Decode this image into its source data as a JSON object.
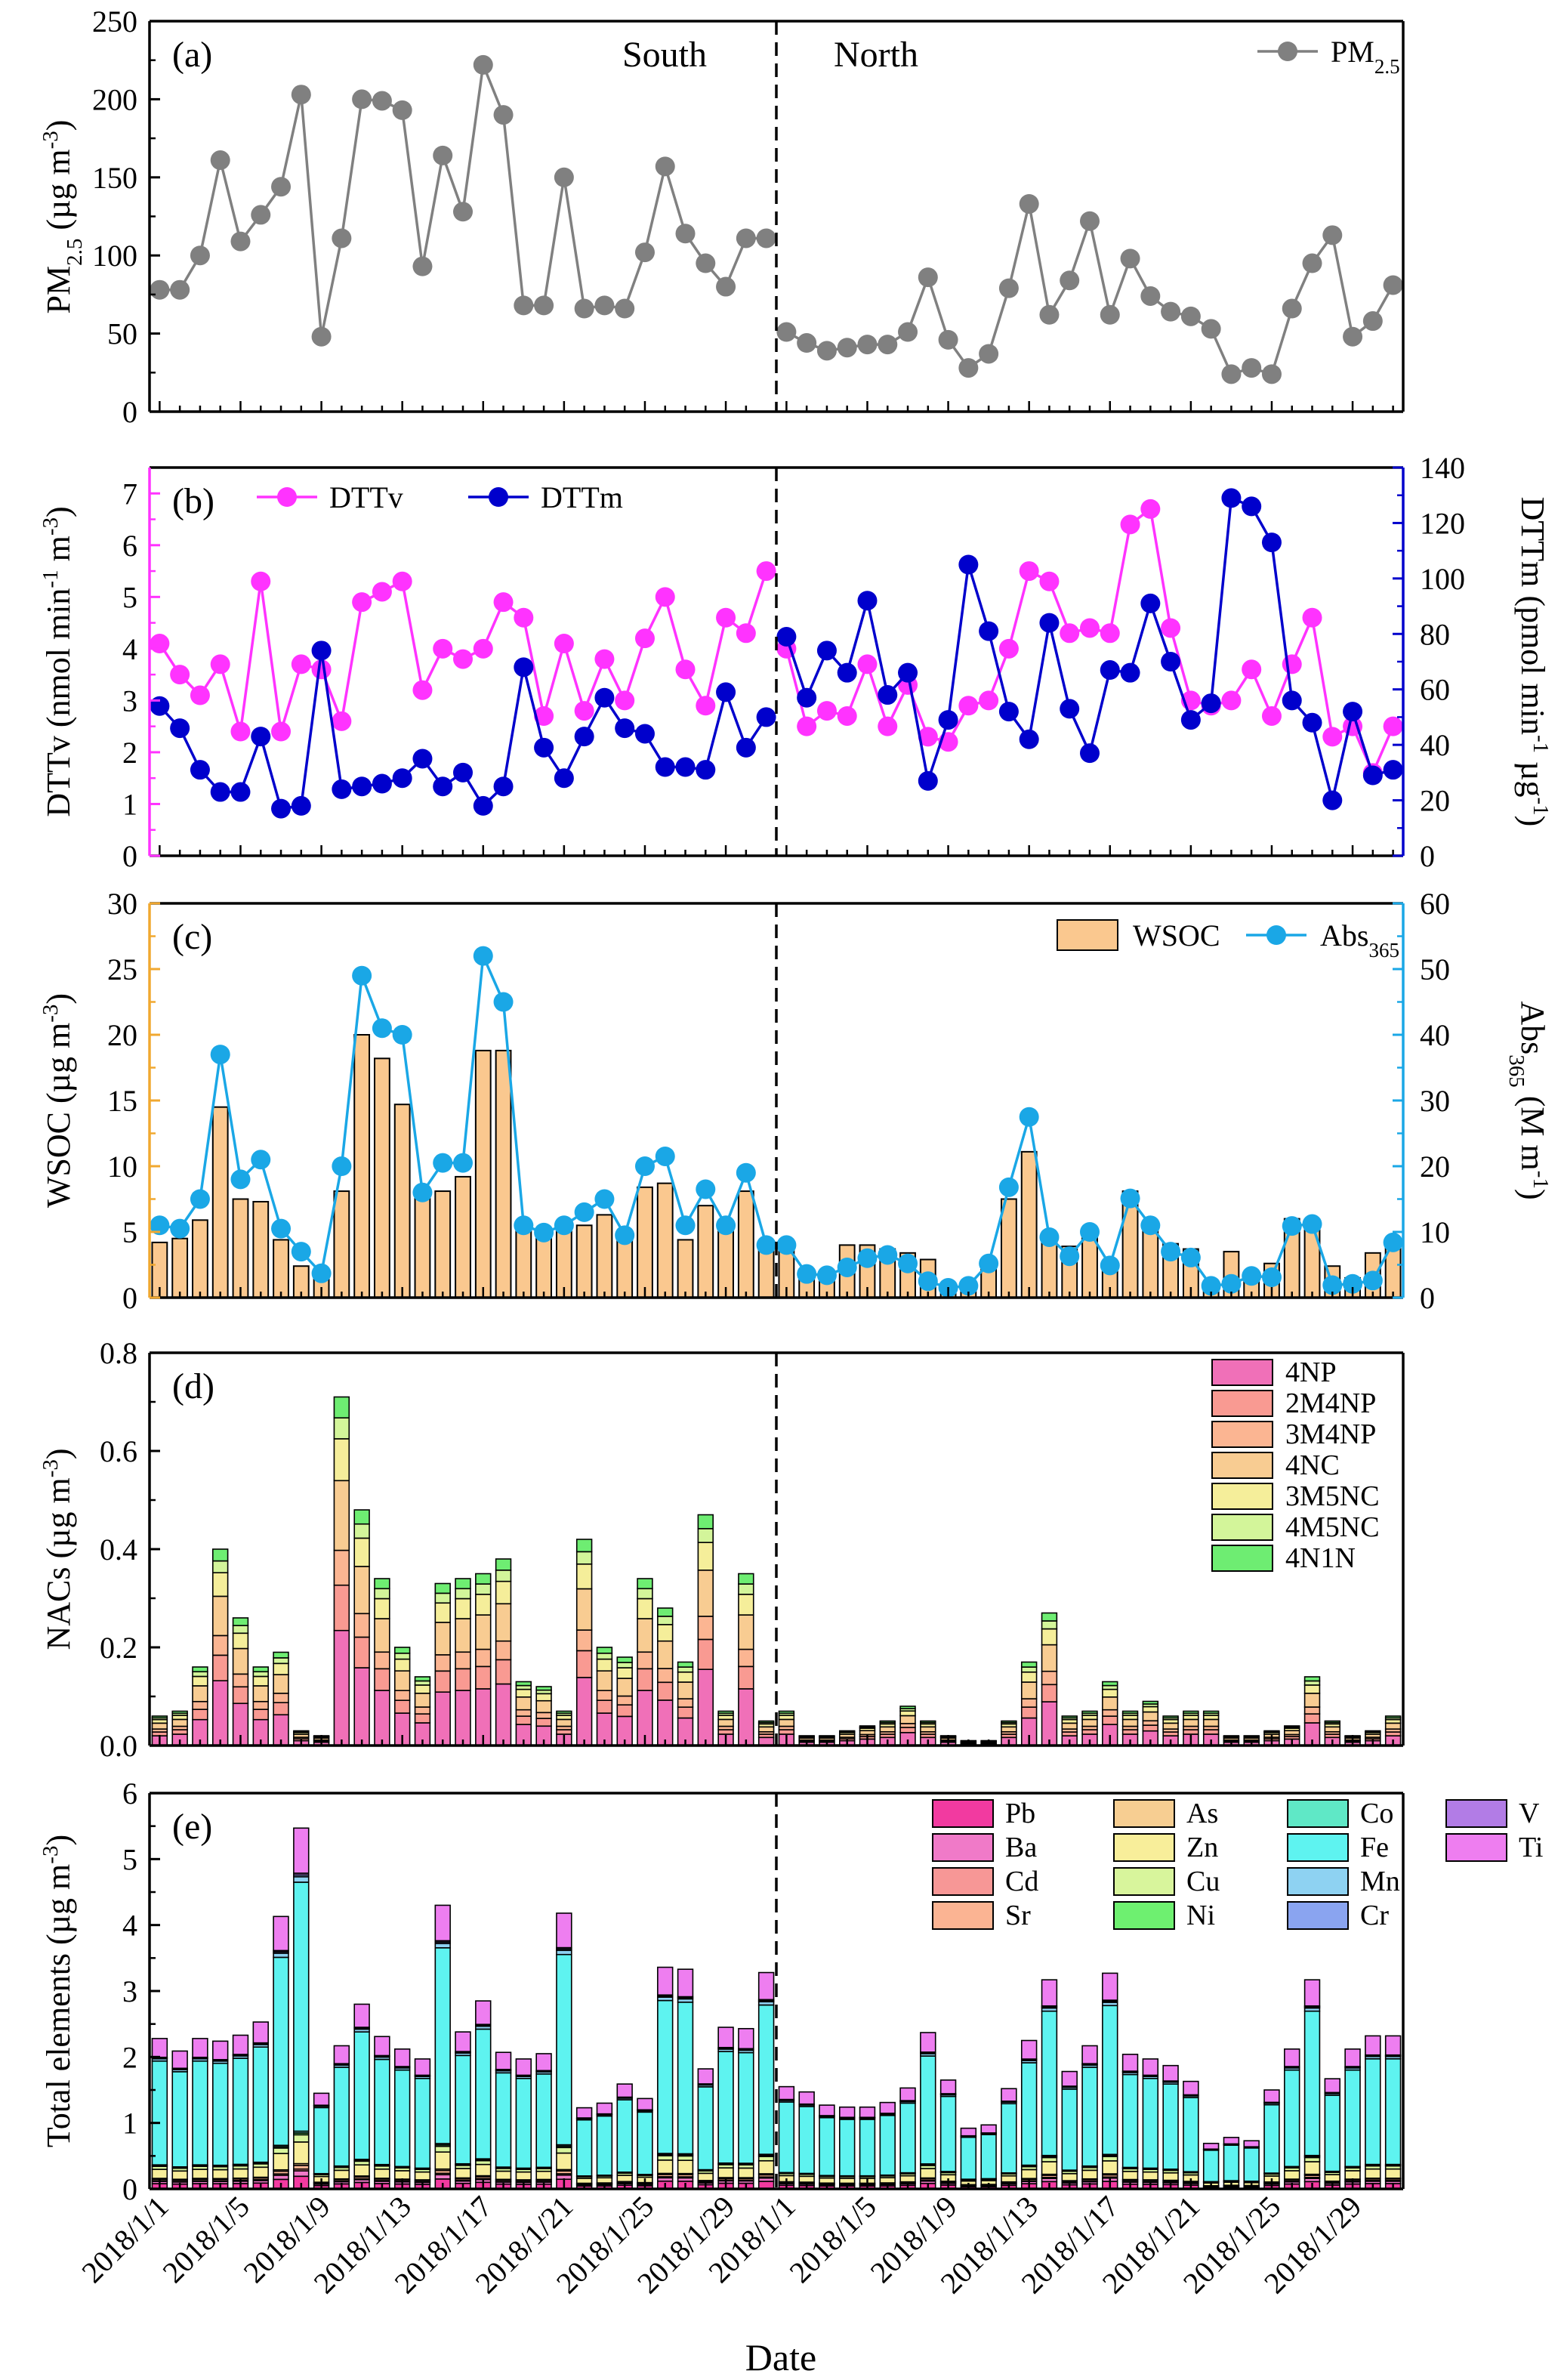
{
  "figure": {
    "xlabel": "Date",
    "region_south": "South",
    "region_north": "North",
    "date_ticks": [
      "2018/1/1",
      "2018/1/5",
      "2018/1/9",
      "2018/1/13",
      "2018/1/17",
      "2018/1/21",
      "2018/1/25",
      "2018/1/29"
    ]
  },
  "chart_data": [
    {
      "panel": "(a)",
      "type": "line",
      "ylabel": "PM2.5 (µg m-3)",
      "ylim": [
        0,
        250
      ],
      "yticks": [
        0,
        50,
        100,
        150,
        200,
        250
      ],
      "series": [
        {
          "name": "PM2.5",
          "color": "#808080",
          "south": [
            78,
            78,
            100,
            161,
            109,
            126,
            144,
            203,
            48,
            111,
            200,
            199,
            193,
            93,
            164,
            128,
            222,
            190,
            68,
            68,
            150,
            66,
            68,
            66,
            102,
            157,
            114,
            95,
            80,
            111,
            111
          ],
          "north": [
            51,
            44,
            39,
            41,
            43,
            43,
            51,
            86,
            46,
            28,
            37,
            79,
            133,
            62,
            84,
            122,
            62,
            98,
            74,
            64,
            61,
            53,
            24,
            28,
            24,
            66,
            95,
            113,
            48,
            58,
            81
          ]
        }
      ]
    },
    {
      "panel": "(b)",
      "type": "line",
      "ylabel": "DTTv (nmol min-1 m-3)",
      "ylabel_right": "DTTm (pmol min-1 µg-1)",
      "ylim": [
        0,
        7.5
      ],
      "ylim_right": [
        0,
        140
      ],
      "yticks": [
        0,
        1,
        2,
        3,
        4,
        5,
        6,
        7
      ],
      "yticks_right": [
        0,
        20,
        40,
        60,
        80,
        100,
        120,
        140
      ],
      "series": [
        {
          "name": "DTTv",
          "axis": "left",
          "color": "#ff33ff",
          "south": [
            4.1,
            3.5,
            3.1,
            3.7,
            2.4,
            5.3,
            2.4,
            3.7,
            3.6,
            2.6,
            4.9,
            5.1,
            5.3,
            3.2,
            4.0,
            3.8,
            4.0,
            4.9,
            4.6,
            2.7,
            4.1,
            2.8,
            3.8,
            3.0,
            4.2,
            5.0,
            3.6,
            2.9,
            4.6,
            4.3,
            5.5
          ],
          "north": [
            4.0,
            2.5,
            2.8,
            2.7,
            3.7,
            2.5,
            3.3,
            2.3,
            2.2,
            2.9,
            3.0,
            4.0,
            5.5,
            5.3,
            4.3,
            4.4,
            4.3,
            6.4,
            6.7,
            4.4,
            3.0,
            2.9,
            3.0,
            3.6,
            2.7,
            3.7,
            4.6,
            2.3,
            2.5,
            1.6,
            2.5
          ]
        },
        {
          "name": "DTTm",
          "axis": "right",
          "color": "#0000cc",
          "south": [
            54,
            46,
            31,
            23,
            23,
            43,
            17,
            18,
            74,
            24,
            25,
            26,
            28,
            35,
            25,
            30,
            18,
            25,
            68,
            39,
            28,
            43,
            57,
            46,
            44,
            32,
            32,
            31,
            59,
            39,
            50
          ],
          "north": [
            79,
            57,
            74,
            66,
            92,
            58,
            66,
            27,
            49,
            105,
            81,
            52,
            42,
            84,
            53,
            37,
            67,
            66,
            91,
            70,
            49,
            55,
            129,
            126,
            113,
            56,
            48,
            20,
            52,
            29,
            31
          ]
        }
      ]
    },
    {
      "panel": "(c)",
      "type": "bar",
      "ylabel": "WSOC (µg m-3)",
      "ylabel_right": "Abs365 (M m-1)",
      "ylim": [
        0,
        30
      ],
      "ylim_right": [
        0,
        60
      ],
      "yticks": [
        0,
        5,
        10,
        15,
        20,
        25,
        30
      ],
      "yticks_right": [
        0,
        10,
        20,
        30,
        40,
        50,
        60
      ],
      "series": [
        {
          "name": "WSOC",
          "axis": "left",
          "color": "#fac88f",
          "south": [
            4.2,
            4.5,
            5.9,
            14.5,
            7.5,
            7.3,
            4.4,
            2.4,
            1.5,
            8.1,
            20.0,
            18.2,
            14.7,
            8.2,
            8.1,
            9.2,
            18.8,
            18.8,
            5.8,
            5.1,
            5.6,
            5.5,
            6.3,
            5.0,
            8.4,
            8.7,
            4.4,
            7.0,
            5.1,
            8.1,
            3.9
          ],
          "north": [
            3.8,
            1.8,
            1.9,
            4.0,
            4.0,
            3.7,
            3.4,
            2.9,
            1.1,
            1.0,
            2.6,
            7.5,
            11.1,
            4.6,
            3.9,
            4.6,
            2.0,
            8.1,
            5.5,
            4.1,
            3.7,
            1.2,
            3.5,
            1.5,
            2.6,
            6.0,
            5.5,
            2.4,
            1.5,
            3.4,
            4.2
          ]
        },
        {
          "name": "Abs365",
          "axis": "right",
          "color": "#1aa7e6",
          "type": "line",
          "south": [
            11,
            10.5,
            15,
            37,
            18,
            21,
            10.5,
            7,
            3.7,
            20,
            49,
            41,
            40,
            16,
            20.5,
            20.5,
            52,
            45,
            11,
            9.9,
            11,
            13,
            15,
            9.5,
            20,
            21.5,
            11,
            16.5,
            11,
            19,
            8
          ],
          "north": [
            8,
            3.6,
            3.4,
            4.6,
            6,
            6.5,
            5.2,
            2.5,
            1.5,
            1.8,
            5.2,
            16.8,
            27.5,
            9.2,
            6.3,
            10,
            4.9,
            15.1,
            11,
            7,
            6.1,
            1.8,
            2.1,
            3.3,
            3.1,
            10.9,
            11.2,
            1.9,
            2.1,
            2.6,
            8.4
          ]
        }
      ]
    },
    {
      "panel": "(d)",
      "type": "bar",
      "stacked": true,
      "ylabel": "NACs (µg m-3)",
      "ylim": [
        0,
        0.8
      ],
      "yticks": [
        0.0,
        0.2,
        0.4,
        0.6,
        0.8
      ],
      "components": [
        "4NP",
        "2M4NP",
        "3M4NP",
        "4NC",
        "3M5NC",
        "4M5NC",
        "4N1N"
      ],
      "colors": [
        "#f070b8",
        "#f99a92",
        "#fbb592",
        "#f8cc92",
        "#f5ee9a",
        "#d3f59a",
        "#6eed72"
      ],
      "totals_south": [
        0.06,
        0.07,
        0.16,
        0.4,
        0.26,
        0.16,
        0.19,
        0.03,
        0.02,
        0.71,
        0.48,
        0.34,
        0.2,
        0.14,
        0.33,
        0.34,
        0.35,
        0.38,
        0.13,
        0.12,
        0.07,
        0.42,
        0.2,
        0.18,
        0.34,
        0.28,
        0.17,
        0.47,
        0.07,
        0.35,
        0.05
      ],
      "totals_north": [
        0.07,
        0.02,
        0.02,
        0.03,
        0.04,
        0.05,
        0.08,
        0.05,
        0.02,
        0.01,
        0.01,
        0.05,
        0.17,
        0.27,
        0.06,
        0.07,
        0.13,
        0.07,
        0.09,
        0.06,
        0.07,
        0.07,
        0.02,
        0.02,
        0.03,
        0.04,
        0.14,
        0.05,
        0.02,
        0.03,
        0.06
      ],
      "fractions": [
        0.33,
        0.13,
        0.1,
        0.2,
        0.12,
        0.06,
        0.06
      ]
    },
    {
      "panel": "(e)",
      "type": "bar",
      "stacked": true,
      "ylabel": "Total elements (µg m-3)",
      "ylim": [
        0,
        6
      ],
      "yticks": [
        0,
        1,
        2,
        3,
        4,
        5,
        6
      ],
      "components": [
        "Pb",
        "Ba",
        "Cd",
        "Sr",
        "As",
        "Zn",
        "Cu",
        "Ni",
        "Co",
        "Fe",
        "Mn",
        "Cr",
        "V",
        "Ti"
      ],
      "colors": [
        "#f23aa0",
        "#f07ac8",
        "#f79796",
        "#fbb493",
        "#f7ce92",
        "#f8ee9a",
        "#d8f59c",
        "#6ef070",
        "#5fe8c6",
        "#5ef3f0",
        "#8ed2f2",
        "#8aa4f0",
        "#b27ce6",
        "#ee7ef0"
      ],
      "totals_south": [
        2.28,
        2.09,
        2.28,
        2.24,
        2.33,
        2.53,
        4.13,
        5.47,
        1.45,
        2.17,
        2.8,
        2.31,
        2.12,
        1.97,
        4.3,
        2.38,
        2.85,
        2.07,
        1.97,
        2.05,
        4.18,
        1.23,
        1.3,
        1.59,
        1.37,
        3.36,
        3.33,
        1.82,
        2.45,
        2.43,
        3.28
      ],
      "totals_north": [
        1.55,
        1.47,
        1.27,
        1.24,
        1.24,
        1.31,
        1.53,
        2.37,
        1.65,
        0.92,
        0.97,
        1.52,
        2.25,
        3.17,
        1.78,
        2.17,
        3.27,
        2.04,
        1.97,
        1.87,
        1.63,
        0.69,
        0.78,
        0.73,
        1.5,
        2.12,
        3.17,
        1.67,
        2.12,
        2.32,
        2.32
      ],
      "fractions": [
        0.035,
        0.015,
        0.005,
        0.01,
        0.005,
        0.06,
        0.02,
        0.005,
        0.005,
        0.69,
        0.015,
        0.005,
        0.005,
        0.125
      ]
    }
  ],
  "legends": {
    "a": [
      {
        "label": "PM",
        "sub": "2.5"
      }
    ],
    "b": [
      {
        "label": "DTTv"
      },
      {
        "label": "DTTm"
      }
    ],
    "c": [
      {
        "label": "WSOC"
      },
      {
        "label": "Abs",
        "sub": "365"
      }
    ],
    "d": [
      "4NP",
      "2M4NP",
      "3M4NP",
      "4NC",
      "3M5NC",
      "4M5NC",
      "4N1N"
    ],
    "e": [
      "Pb",
      "As",
      "Co",
      "V",
      "Ba",
      "Zn",
      "Fe",
      "Ti",
      "Cd",
      "Cu",
      "Mn",
      "Sr",
      "Ni",
      "Cr"
    ]
  }
}
